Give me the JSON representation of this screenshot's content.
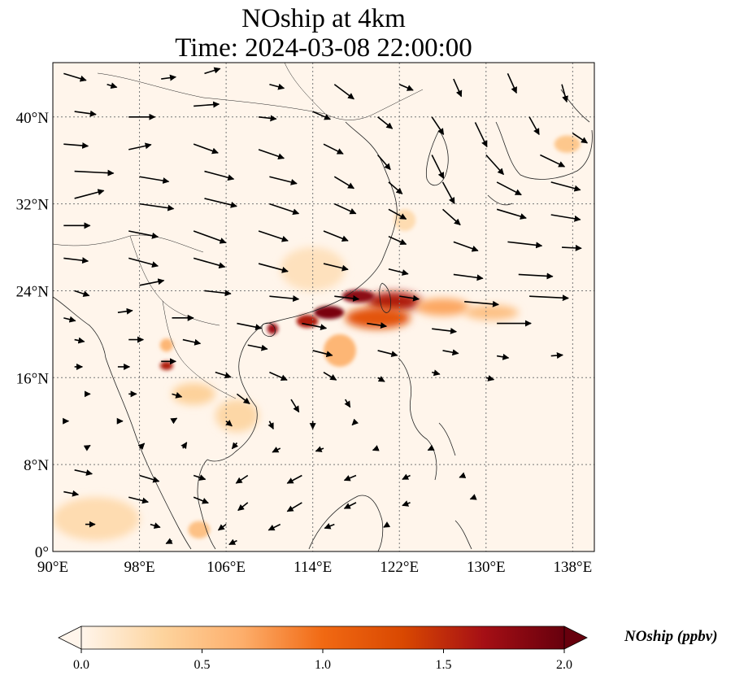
{
  "title_line1": "NOship at 4km",
  "title_line2": "Time: 2024-03-08 22:00:00",
  "map": {
    "lon_range": [
      90,
      140
    ],
    "lat_range": [
      0,
      45
    ],
    "lon_ticks": [
      {
        "value": 90,
        "label": "90°E"
      },
      {
        "value": 98,
        "label": "98°E"
      },
      {
        "value": 106,
        "label": "106°E"
      },
      {
        "value": 114,
        "label": "114°E"
      },
      {
        "value": 122,
        "label": "122°E"
      },
      {
        "value": 130,
        "label": "130°E"
      },
      {
        "value": 138,
        "label": "138°E"
      }
    ],
    "lat_ticks": [
      {
        "value": 0,
        "label": "0°"
      },
      {
        "value": 8,
        "label": "8°N"
      },
      {
        "value": 16,
        "label": "16°N"
      },
      {
        "value": 24,
        "label": "24°N"
      },
      {
        "value": 32,
        "label": "32°N"
      },
      {
        "value": 40,
        "label": "40°N"
      }
    ],
    "gridlines": true
  },
  "colorbar": {
    "label": "NOship (ppbv)",
    "min": 0.0,
    "max": 2.0,
    "extend": "both",
    "colormap": [
      "#fff5eb",
      "#fdd49e",
      "#fdae6b",
      "#f16913",
      "#d94801",
      "#a50f15",
      "#67000d"
    ],
    "ticks": [
      {
        "value": 0.0,
        "label": "0.0"
      },
      {
        "value": 0.5,
        "label": "0.5"
      },
      {
        "value": 1.0,
        "label": "1.0"
      },
      {
        "value": 1.5,
        "label": "1.5"
      },
      {
        "value": 2.0,
        "label": "2.0"
      }
    ]
  },
  "plumes": [
    {
      "lon": 121.5,
      "lat": 23.0,
      "rlon": 2.5,
      "rlat": 0.9,
      "value": 1.6
    },
    {
      "lon": 118.2,
      "lat": 23.5,
      "rlon": 1.5,
      "rlat": 0.6,
      "value": 1.8
    },
    {
      "lon": 115.5,
      "lat": 22.0,
      "rlon": 1.4,
      "rlat": 0.6,
      "value": 1.9
    },
    {
      "lon": 113.5,
      "lat": 21.2,
      "rlon": 1.0,
      "rlat": 0.6,
      "value": 1.6
    },
    {
      "lon": 110.3,
      "lat": 20.5,
      "rlon": 0.5,
      "rlat": 0.5,
      "value": 1.7
    },
    {
      "lon": 120.0,
      "lat": 21.5,
      "rlon": 3.0,
      "rlat": 1.0,
      "value": 1.2
    },
    {
      "lon": 126.0,
      "lat": 22.5,
      "rlon": 2.5,
      "rlat": 0.8,
      "value": 0.7
    },
    {
      "lon": 130.5,
      "lat": 22.0,
      "rlon": 2.5,
      "rlat": 0.7,
      "value": 0.5
    },
    {
      "lon": 116.5,
      "lat": 18.5,
      "rlon": 1.5,
      "rlat": 1.5,
      "value": 0.6
    },
    {
      "lon": 100.5,
      "lat": 17.1,
      "rlon": 0.6,
      "rlat": 0.4,
      "value": 1.6
    },
    {
      "lon": 100.5,
      "lat": 19.0,
      "rlon": 0.6,
      "rlat": 0.6,
      "value": 0.6
    },
    {
      "lon": 103.0,
      "lat": 14.5,
      "rlon": 2.0,
      "rlat": 1.0,
      "value": 0.35
    },
    {
      "lon": 107.0,
      "lat": 12.5,
      "rlon": 2.0,
      "rlat": 1.5,
      "value": 0.3
    },
    {
      "lon": 103.5,
      "lat": 2.0,
      "rlon": 1.0,
      "rlat": 0.8,
      "value": 0.5
    },
    {
      "lon": 94.0,
      "lat": 3.0,
      "rlon": 4.0,
      "rlat": 2.0,
      "value": 0.25
    },
    {
      "lon": 137.5,
      "lat": 37.5,
      "rlon": 1.2,
      "rlat": 0.8,
      "value": 0.45
    },
    {
      "lon": 114.0,
      "lat": 26.0,
      "rlon": 3.0,
      "rlat": 2.0,
      "value": 0.2
    },
    {
      "lon": 122.5,
      "lat": 30.5,
      "rlon": 1.0,
      "rlat": 1.0,
      "value": 0.25
    }
  ],
  "wind_vectors": [
    {
      "lon": 91,
      "lat": 44,
      "u": 2.3,
      "v": -0.7
    },
    {
      "lon": 95,
      "lat": 43,
      "u": 1.0,
      "v": -0.3
    },
    {
      "lon": 100,
      "lat": 43.5,
      "u": 1.5,
      "v": 0.2
    },
    {
      "lon": 104,
      "lat": 44,
      "u": 1.6,
      "v": 0.5
    },
    {
      "lon": 110,
      "lat": 43,
      "u": 1.5,
      "v": -0.4
    },
    {
      "lon": 116,
      "lat": 43,
      "u": 2.0,
      "v": -1.5
    },
    {
      "lon": 122,
      "lat": 43,
      "u": 1.4,
      "v": -0.6
    },
    {
      "lon": 127,
      "lat": 43.5,
      "u": 0.8,
      "v": -1.8
    },
    {
      "lon": 132,
      "lat": 44,
      "u": 0.9,
      "v": -2.0
    },
    {
      "lon": 137,
      "lat": 43,
      "u": 0.5,
      "v": -1.8
    },
    {
      "lon": 92,
      "lat": 40.5,
      "u": 2.2,
      "v": -0.3
    },
    {
      "lon": 97,
      "lat": 40,
      "u": 2.7,
      "v": 0.0
    },
    {
      "lon": 103,
      "lat": 41,
      "u": 2.6,
      "v": 0.2
    },
    {
      "lon": 109,
      "lat": 40,
      "u": 1.8,
      "v": -0.2
    },
    {
      "lon": 114,
      "lat": 40.5,
      "u": 1.8,
      "v": -0.8
    },
    {
      "lon": 120,
      "lat": 40,
      "u": 1.5,
      "v": -1.2
    },
    {
      "lon": 125,
      "lat": 40,
      "u": 1.2,
      "v": -1.8
    },
    {
      "lon": 129,
      "lat": 39.5,
      "u": 1.2,
      "v": -2.5
    },
    {
      "lon": 134,
      "lat": 40,
      "u": 1.0,
      "v": -1.8
    },
    {
      "lon": 138,
      "lat": 38.5,
      "u": 1.5,
      "v": -1.0
    },
    {
      "lon": 91,
      "lat": 37.5,
      "u": 2.5,
      "v": -0.2
    },
    {
      "lon": 97,
      "lat": 37,
      "u": 2.3,
      "v": 0.5
    },
    {
      "lon": 103,
      "lat": 37.5,
      "u": 2.5,
      "v": -0.9
    },
    {
      "lon": 109,
      "lat": 37,
      "u": 2.6,
      "v": -0.9
    },
    {
      "lon": 115,
      "lat": 37.5,
      "u": 2.0,
      "v": -1.0
    },
    {
      "lon": 120,
      "lat": 36.5,
      "u": 1.3,
      "v": -1.5
    },
    {
      "lon": 125,
      "lat": 36.5,
      "u": 1.2,
      "v": -2.4
    },
    {
      "lon": 130,
      "lat": 36.5,
      "u": 1.8,
      "v": -2.0
    },
    {
      "lon": 135,
      "lat": 36.5,
      "u": 2.5,
      "v": -1.2
    },
    {
      "lon": 92,
      "lat": 35,
      "u": 4.0,
      "v": -0.2
    },
    {
      "lon": 98,
      "lat": 34.5,
      "u": 3.0,
      "v": -0.5
    },
    {
      "lon": 104,
      "lat": 35,
      "u": 3.0,
      "v": -0.8
    },
    {
      "lon": 110,
      "lat": 34.5,
      "u": 2.8,
      "v": -0.7
    },
    {
      "lon": 116,
      "lat": 34.5,
      "u": 2.0,
      "v": -1.2
    },
    {
      "lon": 121,
      "lat": 34,
      "u": 1.4,
      "v": -1.2
    },
    {
      "lon": 126,
      "lat": 34,
      "u": 1.2,
      "v": -2.2
    },
    {
      "lon": 131,
      "lat": 34,
      "u": 2.5,
      "v": -1.3
    },
    {
      "lon": 136,
      "lat": 34,
      "u": 3.0,
      "v": -0.8
    },
    {
      "lon": 92,
      "lat": 32.5,
      "u": 3.0,
      "v": 0.8
    },
    {
      "lon": 98,
      "lat": 32,
      "u": 3.5,
      "v": -0.5
    },
    {
      "lon": 104,
      "lat": 32.5,
      "u": 3.3,
      "v": -0.8
    },
    {
      "lon": 110,
      "lat": 32,
      "u": 3.0,
      "v": -1.0
    },
    {
      "lon": 116,
      "lat": 32,
      "u": 2.2,
      "v": -1.0
    },
    {
      "lon": 121,
      "lat": 31.5,
      "u": 1.8,
      "v": -1.0
    },
    {
      "lon": 126,
      "lat": 31.5,
      "u": 1.8,
      "v": -1.6
    },
    {
      "lon": 131,
      "lat": 31.5,
      "u": 3.0,
      "v": -0.9
    },
    {
      "lon": 136,
      "lat": 31,
      "u": 3.0,
      "v": -0.5
    },
    {
      "lon": 91,
      "lat": 30,
      "u": 2.7,
      "v": 0.0
    },
    {
      "lon": 97,
      "lat": 29.5,
      "u": 3.0,
      "v": -0.6
    },
    {
      "lon": 103,
      "lat": 29.5,
      "u": 3.3,
      "v": -1.2
    },
    {
      "lon": 109,
      "lat": 29.5,
      "u": 3.0,
      "v": -1.0
    },
    {
      "lon": 115,
      "lat": 29.5,
      "u": 2.5,
      "v": -1.0
    },
    {
      "lon": 121,
      "lat": 29,
      "u": 1.8,
      "v": -0.8
    },
    {
      "lon": 127,
      "lat": 28.5,
      "u": 2.5,
      "v": -0.9
    },
    {
      "lon": 132,
      "lat": 28.5,
      "u": 3.5,
      "v": -0.4
    },
    {
      "lon": 137,
      "lat": 28,
      "u": 2.0,
      "v": -0.1
    },
    {
      "lon": 91,
      "lat": 27,
      "u": 2.5,
      "v": -0.3
    },
    {
      "lon": 97,
      "lat": 27,
      "u": 3.0,
      "v": -0.8
    },
    {
      "lon": 103,
      "lat": 27,
      "u": 3.2,
      "v": -0.9
    },
    {
      "lon": 109,
      "lat": 26.5,
      "u": 3.0,
      "v": -0.8
    },
    {
      "lon": 115,
      "lat": 26.5,
      "u": 2.5,
      "v": -0.6
    },
    {
      "lon": 121,
      "lat": 26,
      "u": 2.0,
      "v": -0.5
    },
    {
      "lon": 127,
      "lat": 25.5,
      "u": 3.0,
      "v": -0.4
    },
    {
      "lon": 133,
      "lat": 25.5,
      "u": 3.5,
      "v": -0.2
    },
    {
      "lon": 92,
      "lat": 24,
      "u": 1.5,
      "v": -0.5
    },
    {
      "lon": 98,
      "lat": 24.5,
      "u": 2.5,
      "v": 0.5
    },
    {
      "lon": 104,
      "lat": 24,
      "u": 2.7,
      "v": -0.3
    },
    {
      "lon": 110,
      "lat": 23.5,
      "u": 3.0,
      "v": -0.3
    },
    {
      "lon": 116,
      "lat": 23.5,
      "u": 2.5,
      "v": -0.3
    },
    {
      "lon": 122,
      "lat": 23.5,
      "u": 2.0,
      "v": -0.3
    },
    {
      "lon": 128,
      "lat": 23,
      "u": 3.5,
      "v": -0.3
    },
    {
      "lon": 134,
      "lat": 23.5,
      "u": 4.0,
      "v": -0.2
    },
    {
      "lon": 91,
      "lat": 21.5,
      "u": 1.2,
      "v": -0.3
    },
    {
      "lon": 96,
      "lat": 22,
      "u": 1.5,
      "v": 0.2
    },
    {
      "lon": 101,
      "lat": 21.5,
      "u": 2.2,
      "v": 0.0
    },
    {
      "lon": 107,
      "lat": 21,
      "u": 2.5,
      "v": -0.5
    },
    {
      "lon": 113,
      "lat": 21,
      "u": 2.5,
      "v": -0.5
    },
    {
      "lon": 119,
      "lat": 21,
      "u": 2.0,
      "v": -0.3
    },
    {
      "lon": 125,
      "lat": 20.5,
      "u": 2.5,
      "v": -0.3
    },
    {
      "lon": 131,
      "lat": 21,
      "u": 3.5,
      "v": 0.0
    },
    {
      "lon": 92,
      "lat": 19.5,
      "u": 1.0,
      "v": -0.2
    },
    {
      "lon": 97,
      "lat": 19.5,
      "u": 1.5,
      "v": 0.0
    },
    {
      "lon": 102,
      "lat": 19.5,
      "u": 1.8,
      "v": -0.4
    },
    {
      "lon": 108,
      "lat": 19,
      "u": 2.0,
      "v": -0.4
    },
    {
      "lon": 114,
      "lat": 18.5,
      "u": 2.0,
      "v": -0.5
    },
    {
      "lon": 120,
      "lat": 18.5,
      "u": 2.0,
      "v": -0.5
    },
    {
      "lon": 126,
      "lat": 18.5,
      "u": 1.6,
      "v": -0.3
    },
    {
      "lon": 131,
      "lat": 18,
      "u": 1.2,
      "v": -0.2
    },
    {
      "lon": 136,
      "lat": 18,
      "u": 1.2,
      "v": 0.1
    },
    {
      "lon": 92,
      "lat": 17,
      "u": 0.8,
      "v": 0.0
    },
    {
      "lon": 96,
      "lat": 17,
      "u": 1.2,
      "v": 0.0
    },
    {
      "lon": 100,
      "lat": 17.5,
      "u": 1.5,
      "v": 0.0
    },
    {
      "lon": 105,
      "lat": 16.5,
      "u": 1.6,
      "v": -0.5
    },
    {
      "lon": 110,
      "lat": 16.5,
      "u": 1.8,
      "v": -0.8
    },
    {
      "lon": 115,
      "lat": 16.5,
      "u": 1.3,
      "v": -0.8
    },
    {
      "lon": 120,
      "lat": 16,
      "u": 0.7,
      "v": -0.4
    },
    {
      "lon": 125,
      "lat": 16.5,
      "u": 0.8,
      "v": -0.2
    },
    {
      "lon": 130,
      "lat": 16,
      "u": 0.8,
      "v": -0.2
    },
    {
      "lon": 93,
      "lat": 14.5,
      "u": 0.5,
      "v": 0.0
    },
    {
      "lon": 97,
      "lat": 14.5,
      "u": 0.8,
      "v": 0.0
    },
    {
      "lon": 101,
      "lat": 14.5,
      "u": 1.0,
      "v": -0.3
    },
    {
      "lon": 107,
      "lat": 14.5,
      "u": 1.3,
      "v": -1.0
    },
    {
      "lon": 112,
      "lat": 14,
      "u": 0.8,
      "v": -1.3
    },
    {
      "lon": 117,
      "lat": 14,
      "u": 0.5,
      "v": -0.8
    },
    {
      "lon": 91,
      "lat": 12,
      "u": 0.5,
      "v": 0.0
    },
    {
      "lon": 96,
      "lat": 12,
      "u": 0.5,
      "v": 0.0
    },
    {
      "lon": 101,
      "lat": 12,
      "u": 0.5,
      "v": 0.3
    },
    {
      "lon": 106,
      "lat": 12,
      "u": 0.6,
      "v": -0.5
    },
    {
      "lon": 110,
      "lat": 12,
      "u": 0.4,
      "v": -0.8
    },
    {
      "lon": 114,
      "lat": 12,
      "u": 0.0,
      "v": -0.8
    },
    {
      "lon": 118,
      "lat": 12,
      "u": -0.4,
      "v": -0.4
    },
    {
      "lon": 93,
      "lat": 9.5,
      "u": 0.5,
      "v": 0.3
    },
    {
      "lon": 98,
      "lat": 9.5,
      "u": 0.5,
      "v": 0.5
    },
    {
      "lon": 102,
      "lat": 9.5,
      "u": 0.4,
      "v": 0.6
    },
    {
      "lon": 107,
      "lat": 10,
      "u": -0.5,
      "v": -0.6
    },
    {
      "lon": 111,
      "lat": 9.5,
      "u": -0.8,
      "v": -0.4
    },
    {
      "lon": 115,
      "lat": 9.5,
      "u": -0.8,
      "v": -0.3
    },
    {
      "lon": 120,
      "lat": 9.5,
      "u": -0.5,
      "v": -0.2
    },
    {
      "lon": 125,
      "lat": 9.5,
      "u": -0.4,
      "v": -0.2
    },
    {
      "lon": 92,
      "lat": 7.5,
      "u": 1.8,
      "v": -0.4
    },
    {
      "lon": 98,
      "lat": 7,
      "u": 2.0,
      "v": -0.6
    },
    {
      "lon": 103,
      "lat": 7,
      "u": 1.2,
      "v": -0.4
    },
    {
      "lon": 108,
      "lat": 7,
      "u": -1.2,
      "v": -0.8
    },
    {
      "lon": 113,
      "lat": 7,
      "u": -1.5,
      "v": -0.8
    },
    {
      "lon": 118,
      "lat": 7,
      "u": -1.2,
      "v": -0.5
    },
    {
      "lon": 123,
      "lat": 7,
      "u": -0.8,
      "v": -0.4
    },
    {
      "lon": 128,
      "lat": 7,
      "u": -0.5,
      "v": -0.2
    },
    {
      "lon": 91,
      "lat": 5.5,
      "u": 1.5,
      "v": -0.3
    },
    {
      "lon": 97,
      "lat": 5,
      "u": 2.0,
      "v": -0.5
    },
    {
      "lon": 103,
      "lat": 5,
      "u": 1.5,
      "v": -0.6
    },
    {
      "lon": 108,
      "lat": 4.5,
      "u": -1.0,
      "v": -0.8
    },
    {
      "lon": 113,
      "lat": 4.5,
      "u": -1.5,
      "v": -0.9
    },
    {
      "lon": 118,
      "lat": 4.5,
      "u": -1.2,
      "v": -0.6
    },
    {
      "lon": 123,
      "lat": 4.5,
      "u": -0.8,
      "v": -0.3
    },
    {
      "lon": 129,
      "lat": 5,
      "u": -0.5,
      "v": -0.2
    },
    {
      "lon": 93,
      "lat": 2.5,
      "u": 1.0,
      "v": 0.0
    },
    {
      "lon": 99,
      "lat": 2.5,
      "u": 1.0,
      "v": -0.3
    },
    {
      "lon": 106,
      "lat": 2.5,
      "u": -0.8,
      "v": -0.6
    },
    {
      "lon": 111,
      "lat": 2.5,
      "u": -1.2,
      "v": -0.6
    },
    {
      "lon": 116,
      "lat": 2.5,
      "u": -1.0,
      "v": -0.4
    },
    {
      "lon": 121,
      "lat": 2.5,
      "u": -0.5,
      "v": -0.3
    },
    {
      "lon": 101,
      "lat": 1,
      "u": -0.6,
      "v": -0.3
    },
    {
      "lon": 107,
      "lat": 1,
      "u": -0.8,
      "v": -0.4
    }
  ],
  "coast_ticks": "data-derived"
}
